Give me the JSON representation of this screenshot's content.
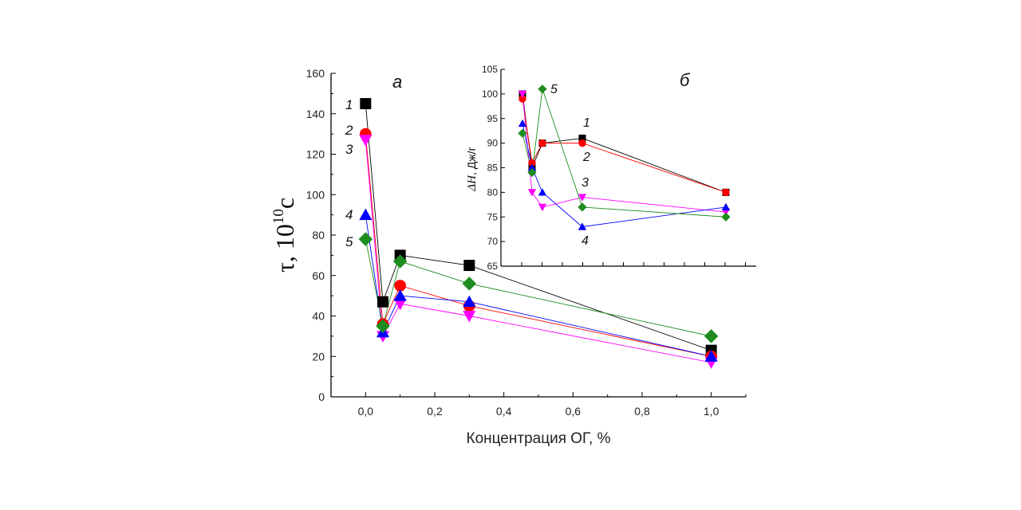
{
  "chart_data": [
    {
      "panel": "а",
      "type": "line",
      "xlabel": "Концентрация ОГ, %",
      "ylabel_symbol": "τ",
      "ylabel_scale": "10",
      "ylabel_exponent": "10",
      "ylabel_unit": "c",
      "xlim": [
        -0.1,
        1.1
      ],
      "ylim": [
        0,
        160
      ],
      "xticks": [
        0.0,
        0.2,
        0.4,
        0.6,
        0.8,
        1.0
      ],
      "xtick_labels": [
        "0,0",
        "0,2",
        "0,4",
        "0,6",
        "0,8",
        "1,0"
      ],
      "yticks": [
        0,
        20,
        40,
        60,
        80,
        100,
        120,
        140,
        160
      ],
      "ytick_labels": [
        "0",
        "20",
        "40",
        "60",
        "80",
        "100",
        "120",
        "140",
        "160"
      ],
      "x": [
        0.0,
        0.05,
        0.1,
        0.3,
        1.0
      ],
      "series": [
        {
          "label": "1",
          "marker": "square",
          "color": "#000000",
          "line_color": "#000000",
          "values": [
            145,
            47,
            70,
            65,
            23
          ]
        },
        {
          "label": "2",
          "marker": "circle",
          "color": "#ff0000",
          "line_color": "#ff0000",
          "values": [
            130,
            36,
            55,
            45,
            20
          ]
        },
        {
          "label": "3",
          "marker": "triangle-down",
          "color": "#ff00ff",
          "line_color": "#ff00ff",
          "values": [
            127,
            30,
            46,
            40,
            17
          ]
        },
        {
          "label": "4",
          "marker": "triangle-up",
          "color": "#0000ff",
          "line_color": "#0000ff",
          "values": [
            90,
            32,
            50,
            47,
            20
          ]
        },
        {
          "label": "5",
          "marker": "diamond",
          "color": "#1e8c1e",
          "line_color": "#1e8c1e",
          "values": [
            78,
            35,
            67,
            56,
            30
          ]
        }
      ]
    },
    {
      "panel": "б",
      "type": "line",
      "ylabel_symbol": "ΔH",
      "ylabel_unit": ", Дж/г",
      "xlim": [
        0.0,
        1.05
      ],
      "ylim": [
        65,
        105
      ],
      "yticks": [
        65,
        70,
        75,
        80,
        85,
        90,
        95,
        100,
        105
      ],
      "ytick_labels": [
        "65",
        "70",
        "75",
        "80",
        "85",
        "90",
        "95",
        "100",
        "105"
      ],
      "x": [
        0.0,
        0.05,
        0.1,
        0.3,
        1.0
      ],
      "series": [
        {
          "label": "1",
          "marker": "square",
          "color": "#000000",
          "line_color": "#000000",
          "values": [
            100,
            85,
            90,
            91,
            80
          ]
        },
        {
          "label": "2",
          "marker": "circle",
          "color": "#ff0000",
          "line_color": "#ff0000",
          "values": [
            99,
            86,
            90,
            90,
            80
          ]
        },
        {
          "label": "3",
          "marker": "triangle-down",
          "color": "#ff00ff",
          "line_color": "#ff00ff",
          "values": [
            100,
            80,
            77,
            79,
            76
          ]
        },
        {
          "label": "4",
          "marker": "triangle-up",
          "color": "#0000ff",
          "line_color": "#0000ff",
          "values": [
            94,
            85,
            80,
            73,
            77
          ]
        },
        {
          "label": "5",
          "marker": "diamond",
          "color": "#1e8c1e",
          "line_color": "#1e8c1e",
          "values": [
            92,
            84,
            101,
            77,
            75
          ]
        }
      ]
    }
  ]
}
